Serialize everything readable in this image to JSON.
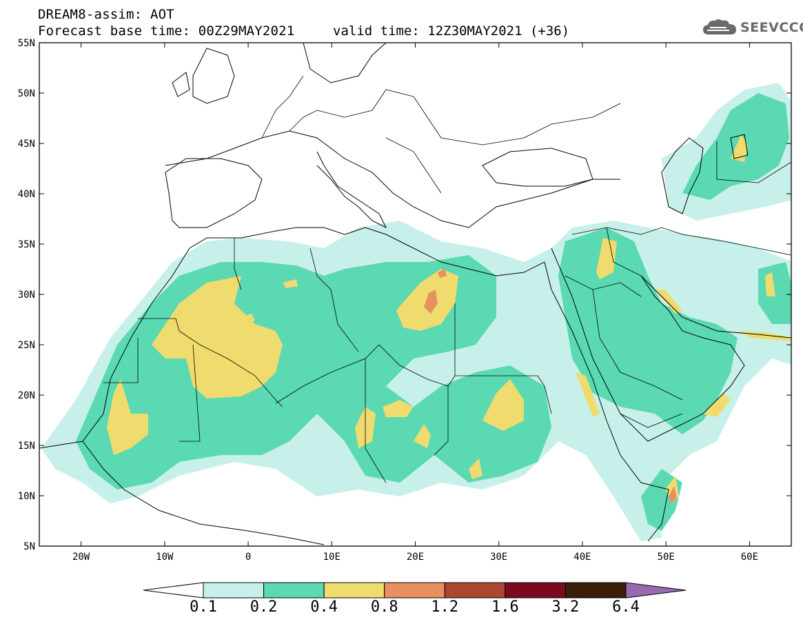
{
  "header": {
    "title": "DREAM8-assim: AOT",
    "forecast": "Forecast base time: 00Z29MAY2021",
    "valid": "valid time: 12Z30MAY2021 (+36)",
    "logo": "SEEVCCC"
  },
  "map": {
    "lon_range": [
      -25,
      65
    ],
    "lat_range": [
      5,
      55
    ],
    "lat_ticks": [
      "5N",
      "10N",
      "15N",
      "20N",
      "25N",
      "30N",
      "35N",
      "40N",
      "45N",
      "50N",
      "55N"
    ],
    "lon_ticks": [
      "20W",
      "10W",
      "0",
      "10E",
      "20E",
      "30E",
      "40E",
      "50E",
      "60E"
    ]
  },
  "colorbar": {
    "labels": [
      "0.1",
      "0.2",
      "0.4",
      "0.8",
      "1.2",
      "1.6",
      "3.2",
      "6.4"
    ],
    "colors": [
      "#ffffff",
      "#c8f0ea",
      "#5ad9b2",
      "#f0dc6e",
      "#e89060",
      "#a84830",
      "#7a0a20",
      "#3a1e0a",
      "#9a6ab0"
    ]
  },
  "icons": [
    "cloud-icon"
  ]
}
